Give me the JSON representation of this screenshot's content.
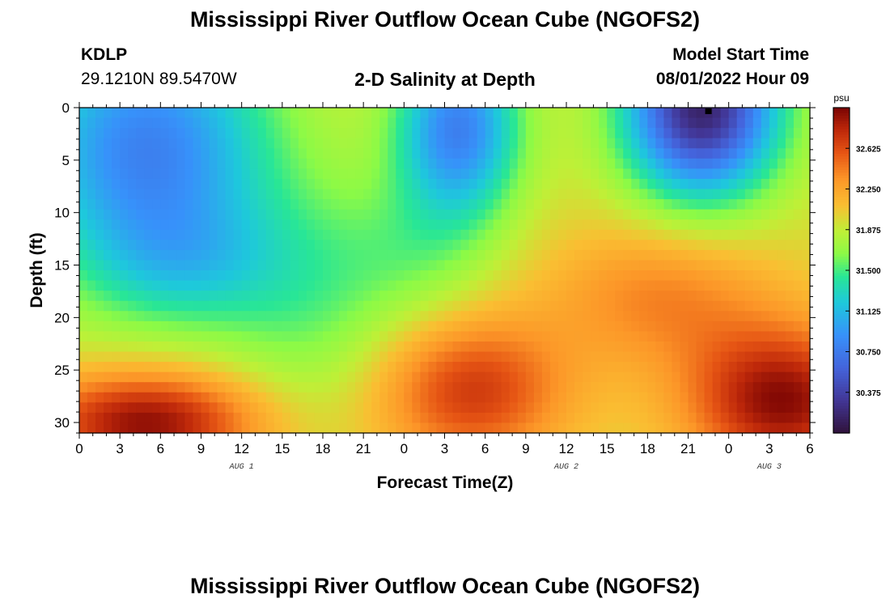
{
  "page": {
    "title": "Mississippi River Outflow Ocean Cube (NGOFS2)",
    "bottom_title": "Mississippi River Outflow Ocean Cube (NGOFS2)",
    "station_id": "KDLP",
    "station_coords": "29.1210N  89.5470W",
    "subtitle": "2-D Salinity at Depth",
    "model_start_label": "Model Start Time",
    "model_start_value": "08/01/2022 Hour 09"
  },
  "chart_data": {
    "type": "heatmap",
    "title": "2-D Salinity at Depth",
    "xlabel": "Forecast Time(Z)",
    "ylabel": "Depth (ft)",
    "x_range_hours": [
      0,
      54
    ],
    "x_tick_labels": [
      "0",
      "3",
      "6",
      "9",
      "12",
      "15",
      "18",
      "21",
      "0",
      "3",
      "6",
      "9",
      "12",
      "15",
      "18",
      "21",
      "0",
      "3",
      "6"
    ],
    "x_tick_hours": [
      0,
      3,
      6,
      9,
      12,
      15,
      18,
      21,
      24,
      27,
      30,
      33,
      36,
      39,
      42,
      45,
      48,
      51,
      54
    ],
    "date_labels": [
      {
        "text": "AUG 1",
        "hour": 12
      },
      {
        "text": "AUG 2",
        "hour": 36
      },
      {
        "text": "AUG 3",
        "hour": 51
      }
    ],
    "y_range": [
      0,
      31
    ],
    "y_inverted": true,
    "y_tick_labels": [
      "0",
      "5",
      "10",
      "15",
      "20",
      "25",
      "30"
    ],
    "y_tick_values": [
      0,
      5,
      10,
      15,
      20,
      25,
      30
    ],
    "colorbar": {
      "unit": "psu",
      "range": [
        30.0,
        33.0
      ],
      "tick_labels": [
        "32.625",
        "32.250",
        "31.875",
        "31.500",
        "31.125",
        "30.750",
        "30.375"
      ],
      "tick_values": [
        32.625,
        32.25,
        31.875,
        31.5,
        31.125,
        30.75,
        30.375
      ]
    },
    "grid": false,
    "salinity_fields": {
      "background": 31.95,
      "features": [
        {
          "kind": "low_blob",
          "hour": 5,
          "depth": 4,
          "sigma_hours": 6.5,
          "sigma_depth": 9,
          "amplitude": -1.15
        },
        {
          "kind": "low_blob",
          "hour": 8,
          "depth": 15,
          "sigma_hours": 5,
          "sigma_depth": 4,
          "amplitude": -0.35
        },
        {
          "kind": "low_blob",
          "hour": 28,
          "depth": 2,
          "sigma_hours": 3.2,
          "sigma_depth": 6,
          "amplitude": -1.15
        },
        {
          "kind": "low_blob",
          "hour": 46,
          "depth": 0,
          "sigma_hours": 4,
          "sigma_depth": 6,
          "amplitude": -1.8
        },
        {
          "kind": "high_blob",
          "hour": 5,
          "depth": 30,
          "sigma_hours": 6,
          "sigma_depth": 3.5,
          "amplitude": 1.0
        },
        {
          "kind": "high_blob",
          "hour": 29,
          "depth": 27,
          "sigma_hours": 5,
          "sigma_depth": 5,
          "amplitude": 0.75
        },
        {
          "kind": "high_blob",
          "hour": 52,
          "depth": 28,
          "sigma_hours": 5,
          "sigma_depth": 5,
          "amplitude": 1.0
        },
        {
          "kind": "high_blob",
          "hour": 43,
          "depth": 18,
          "sigma_hours": 6,
          "sigma_depth": 5,
          "amplitude": 0.45
        },
        {
          "kind": "low_blob",
          "hour": 17,
          "depth": 18,
          "sigma_hours": 5,
          "sigma_depth": 8,
          "amplitude": -0.35
        },
        {
          "kind": "low_blob",
          "hour": 25,
          "depth": 14,
          "sigma_hours": 4,
          "sigma_depth": 5,
          "amplitude": -0.25
        }
      ]
    }
  }
}
